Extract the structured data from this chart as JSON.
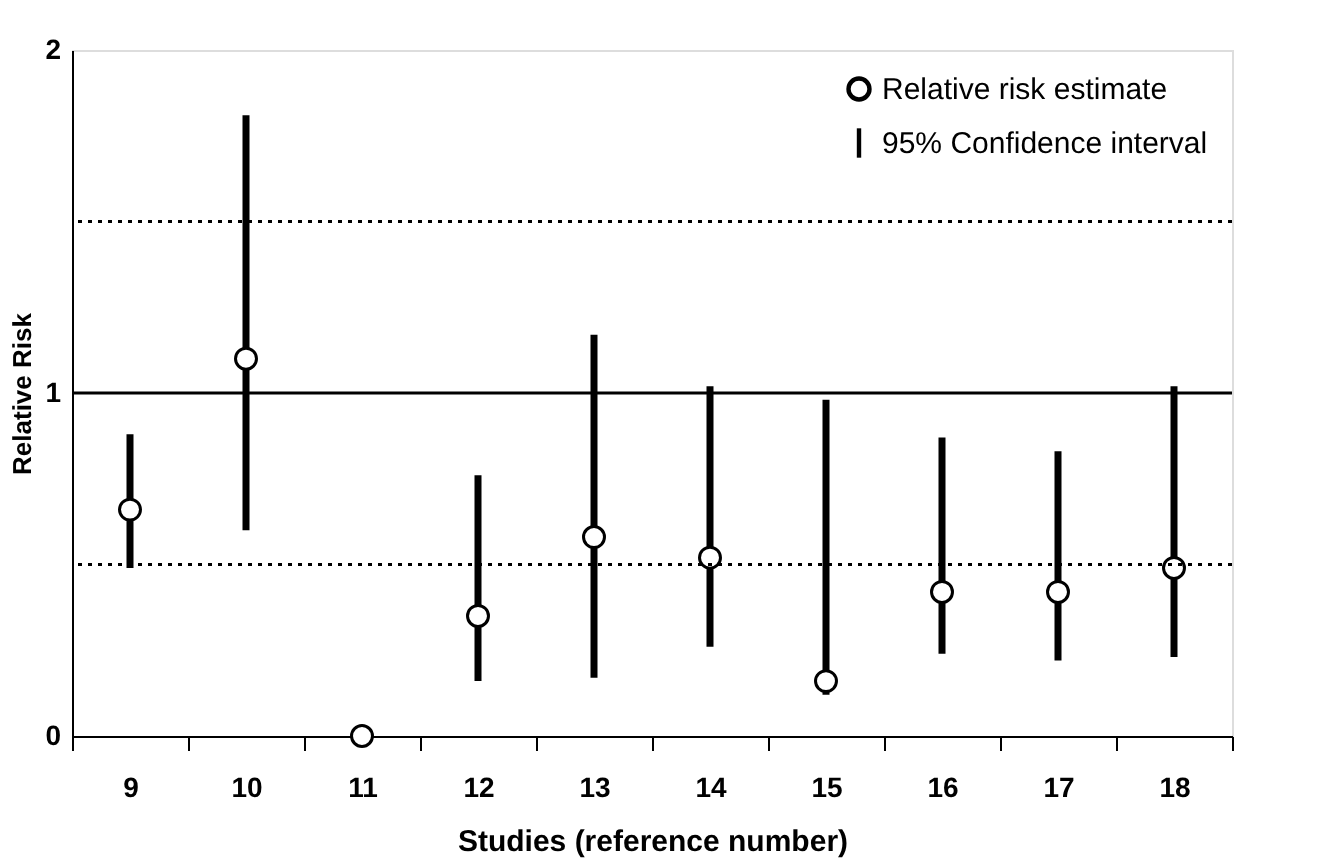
{
  "chart_data": {
    "type": "scatter",
    "xlabel": "Studies (reference number)",
    "ylabel": "Relative Risk",
    "categories": [
      "9",
      "10",
      "11",
      "12",
      "13",
      "14",
      "15",
      "16",
      "17",
      "18"
    ],
    "series": [
      {
        "name": "Relative risk estimate",
        "color": "#000000",
        "values": [
          0.66,
          1.1,
          0.0,
          0.35,
          0.58,
          0.52,
          0.16,
          0.42,
          0.42,
          0.49
        ],
        "errors": [
          [
            0.49,
            0.88
          ],
          [
            0.6,
            1.81
          ],
          null,
          [
            0.16,
            0.76
          ],
          [
            0.17,
            1.17
          ],
          [
            0.26,
            1.02
          ],
          [
            0.12,
            0.98
          ],
          [
            0.24,
            0.87
          ],
          [
            0.22,
            0.83
          ],
          [
            0.23,
            1.02
          ]
        ]
      }
    ],
    "annotations": [
      "95% Confidence interval"
    ],
    "ylim": [
      0,
      2
    ],
    "yticks": [
      0,
      1,
      2
    ],
    "ref_lines": [
      {
        "axis": "y",
        "value": 1,
        "color": "#000000",
        "line_style": "solid"
      },
      {
        "axis": "y",
        "value": 0.5,
        "color": "#000000",
        "line_style": "dotted"
      },
      {
        "axis": "y",
        "value": 1.5,
        "color": "#000000",
        "line_style": "dotted"
      }
    ],
    "marker": "circle",
    "grid": false,
    "legend": "top right"
  }
}
